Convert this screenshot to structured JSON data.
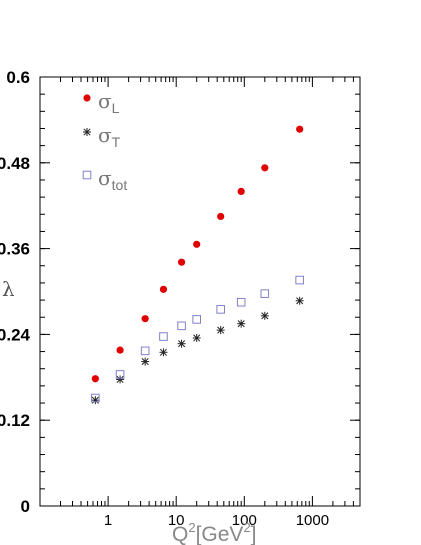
{
  "chart_data": {
    "type": "scatter",
    "xscale": "log",
    "xlim": [
      0.1,
      5000
    ],
    "ylim": [
      0,
      0.6
    ],
    "xlabel_main": "Q",
    "xlabel_sup": "2",
    "xlabel_unit": "[GeV",
    "xlabel_unit_sup": "2",
    "xlabel_close": "]",
    "ylabel": "λ",
    "yticks": [
      0,
      0.12,
      0.24,
      0.36,
      0.48,
      0.6
    ],
    "ytick_labels": [
      "0",
      "0.12",
      "0.24",
      "0.36",
      "0.48",
      "0.6"
    ],
    "xticks": [
      1,
      10,
      100,
      1000
    ],
    "xtick_labels": [
      "1",
      "10",
      "100",
      "1000"
    ],
    "legend_position": "top-left",
    "series": [
      {
        "key": "L",
        "symbol": "σ",
        "subscript": "L",
        "marker": "filled-circle",
        "color": "#e00000",
        "x": [
          0.65,
          1.5,
          3.5,
          6.5,
          12,
          20,
          45,
          90,
          200,
          650
        ],
        "y": [
          0.178,
          0.218,
          0.262,
          0.303,
          0.341,
          0.366,
          0.405,
          0.44,
          0.473,
          0.527
        ]
      },
      {
        "key": "T",
        "symbol": "σ",
        "subscript": "T",
        "marker": "asterisk",
        "color": "#222222",
        "x": [
          0.65,
          1.5,
          3.5,
          6.5,
          12,
          20,
          45,
          90,
          200,
          650
        ],
        "y": [
          0.148,
          0.177,
          0.202,
          0.215,
          0.227,
          0.235,
          0.246,
          0.255,
          0.266,
          0.287
        ]
      },
      {
        "key": "tot",
        "symbol": "σ",
        "subscript": "tot",
        "marker": "open-square",
        "color": "#8080cc",
        "x": [
          0.65,
          1.5,
          3.5,
          6.5,
          12,
          20,
          45,
          90,
          200,
          650
        ],
        "y": [
          0.151,
          0.184,
          0.217,
          0.237,
          0.252,
          0.261,
          0.275,
          0.285,
          0.297,
          0.316
        ]
      }
    ]
  }
}
